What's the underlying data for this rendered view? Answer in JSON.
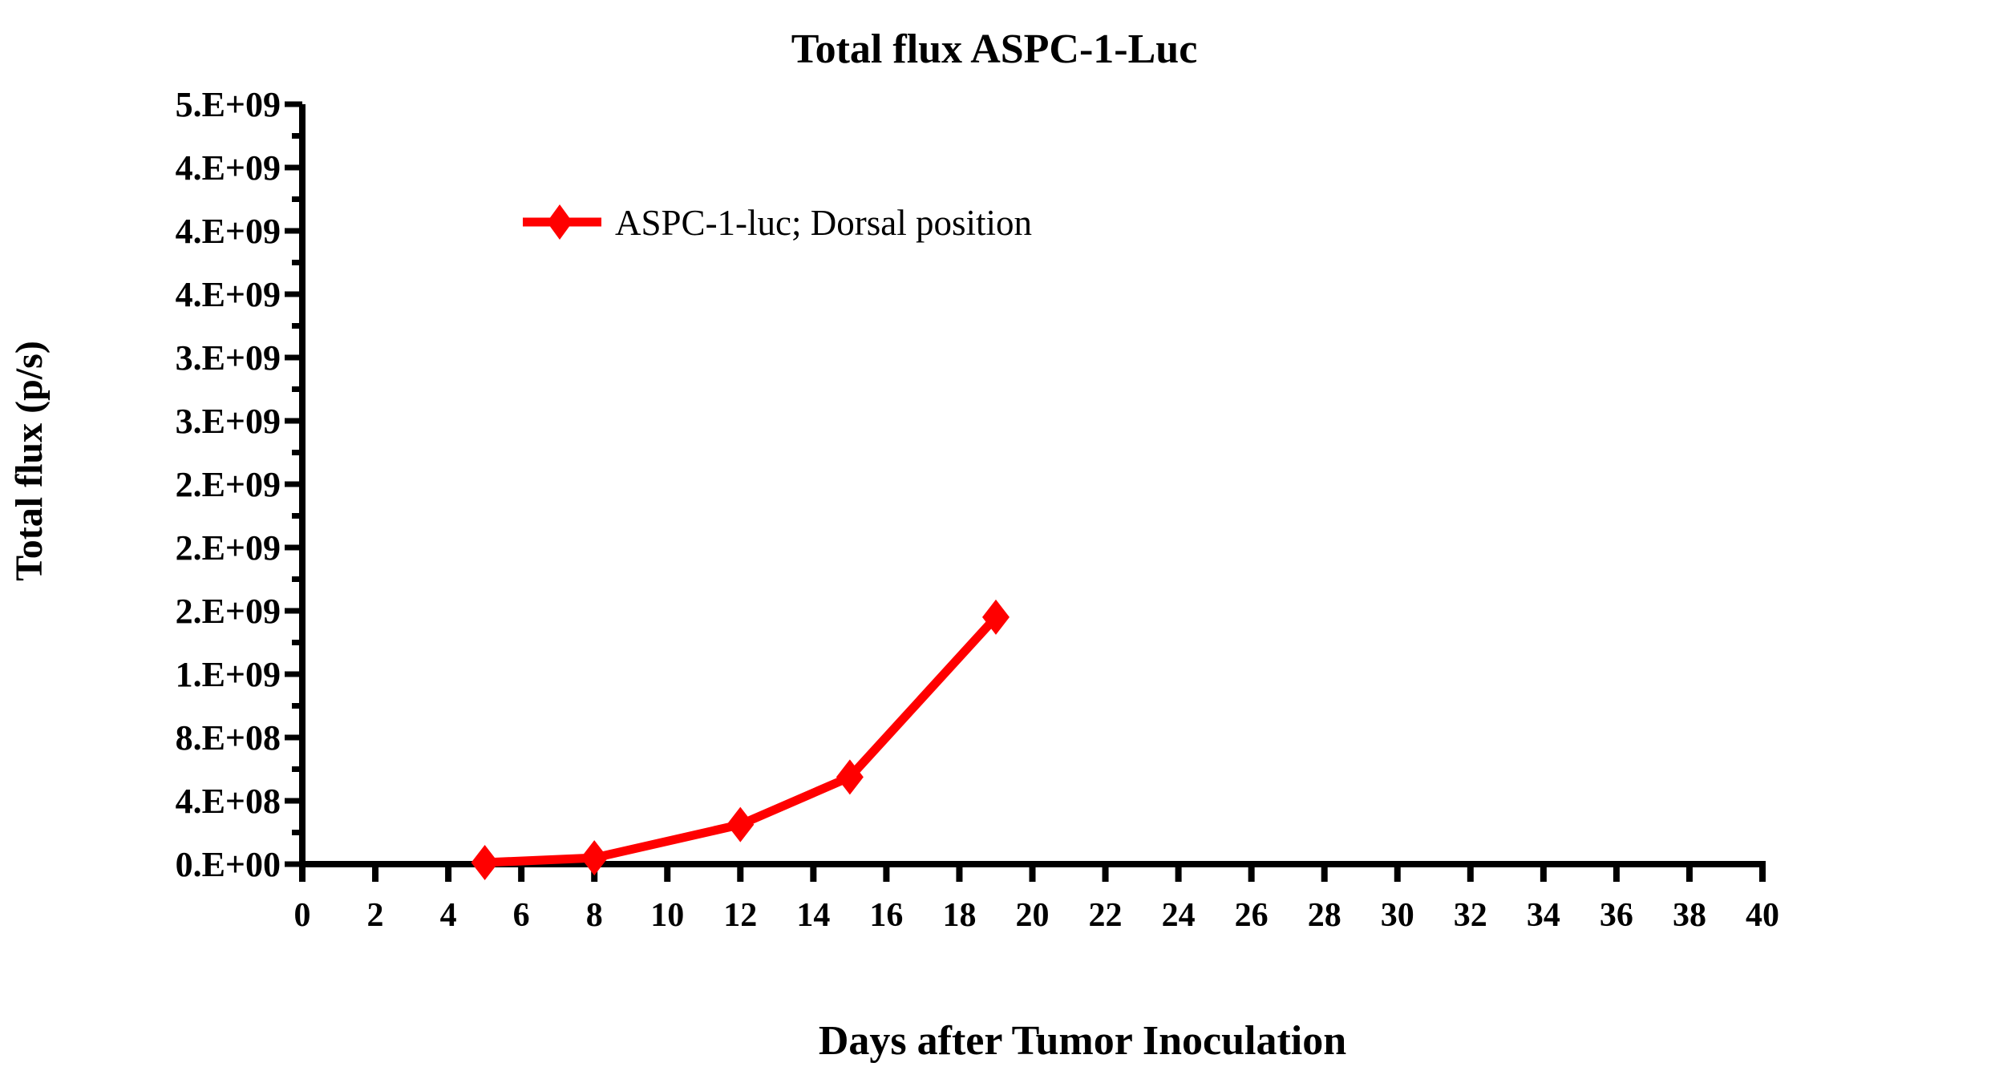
{
  "chart_data": {
    "type": "line",
    "title": "Total flux ASPC-1-Luc",
    "xlabel": "Days after Tumor Inoculation",
    "ylabel": "Total flux  (p/s)",
    "grid": false,
    "legend_position": "upper-left-inside",
    "axis_color": "#000000",
    "background_color": "#ffffff",
    "xlim": [
      0,
      40
    ],
    "ylim": [
      0,
      4800000000.0
    ],
    "xticks": [
      0,
      2,
      4,
      6,
      8,
      10,
      12,
      14,
      16,
      18,
      20,
      22,
      24,
      26,
      28,
      30,
      32,
      34,
      36,
      38,
      40
    ],
    "xtick_labels": [
      "0",
      "2",
      "4",
      "6",
      "8",
      "10",
      "12",
      "14",
      "16",
      "18",
      "20",
      "22",
      "24",
      "26",
      "28",
      "30",
      "32",
      "34",
      "36",
      "38",
      "40"
    ],
    "yticks": [
      0,
      400000000.0,
      800000000.0,
      1200000000.0,
      1600000000.0,
      2000000000.0,
      2400000000.0,
      2800000000.0,
      3200000000.0,
      3600000000.0,
      4000000000.0,
      4400000000.0,
      4800000000.0
    ],
    "ytick_labels": [
      "0.E+00",
      "4.E+08",
      "8.E+08",
      "1.E+09",
      "2.E+09",
      "2.E+09",
      "2.E+09",
      "3.E+09",
      "3.E+09",
      "4.E+09",
      "4.E+09",
      "4.E+09",
      "5.E+09"
    ],
    "y_minor_step": 200000000.0,
    "series": [
      {
        "name": "ASPC-1-luc; Dorsal position",
        "color": "#ff0000",
        "marker": "diamond",
        "x": [
          5,
          8,
          12,
          15,
          19
        ],
        "y": [
          10000000.0,
          40000000.0,
          250000000.0,
          550000000.0,
          1560000000.0
        ]
      }
    ]
  }
}
